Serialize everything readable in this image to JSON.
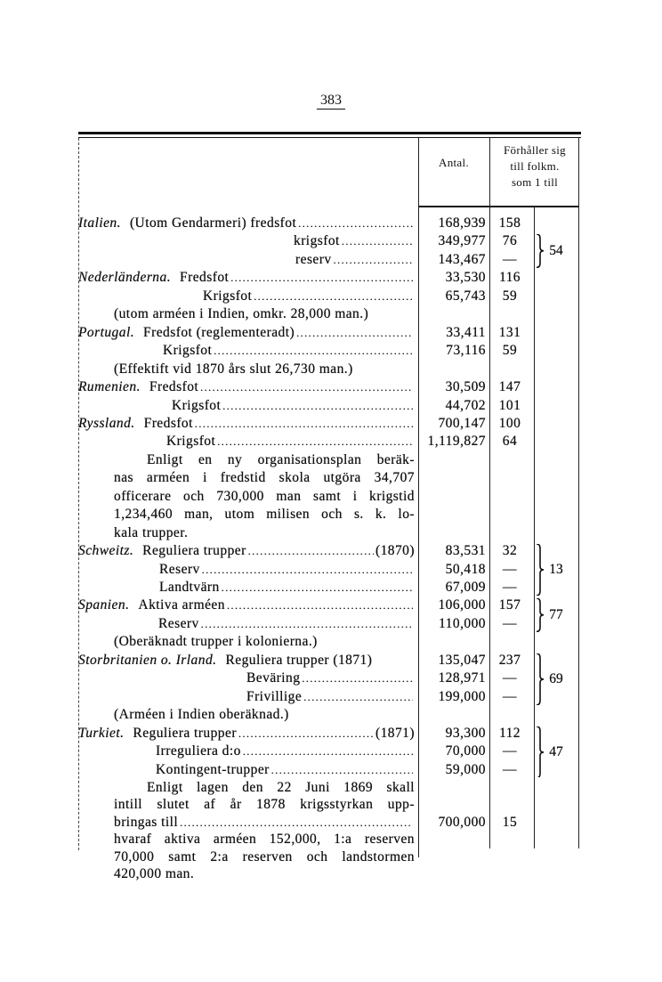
{
  "page_number": "383",
  "header": {
    "antal": "Antal.",
    "ratio_lines": [
      "Förhåller sig",
      "till folkm.",
      "som 1 till"
    ]
  },
  "rows": [
    {
      "country": "Italien.",
      "text": "(Utom Gendarmeri) fredsfot",
      "dots": true,
      "antal": "168,939",
      "ratio": "158"
    },
    {
      "text": "krigsfot",
      "dots": true,
      "antal": "349,977",
      "ratio": "76"
    },
    {
      "text": "reserv",
      "dots": true,
      "antal": "143,467",
      "ratio": "—"
    },
    {
      "country": "Nederländerna.",
      "text": "Fredsfot",
      "dots": true,
      "antal": "33,530",
      "ratio": "116"
    },
    {
      "text": "Krigsfot",
      "dots": true,
      "antal": "65,743",
      "ratio": "59"
    },
    {
      "text": "(utom arméen i Indien, omkr. 28,000 man.)"
    },
    {
      "country": "Portugal.",
      "text": "Fredsfot (reglementeradt)",
      "dots": true,
      "antal": "33,411",
      "ratio": "131"
    },
    {
      "text": "Krigsfot",
      "dots": true,
      "antal": "73,116",
      "ratio": "59"
    },
    {
      "text": "(Effektift vid 1870 års slut 26,730 man.)"
    },
    {
      "country": "Rumenien.",
      "text": "Fredsfot",
      "dots": true,
      "antal": "30,509",
      "ratio": "147"
    },
    {
      "text": "Krigsfot",
      "dots": true,
      "antal": "44,702",
      "ratio": "101"
    },
    {
      "country": "Ryssland.",
      "text": "Fredsfot",
      "dots": true,
      "antal": "700,147",
      "ratio": "100"
    },
    {
      "text": "Krigsfot",
      "dots": true,
      "antal": "1,119,827",
      "ratio": "64"
    },
    {
      "text": "Enligt en ny organisationsplan beräk-",
      "para": true
    },
    {
      "text": "nas arméen i fredstid skola utgöra 34,707",
      "para": true
    },
    {
      "text": "officerare och 730,000 man samt i krigstid",
      "para": true
    },
    {
      "text": "1,234,460 man, utom milisen och s. k. lo-",
      "para": true
    },
    {
      "text": "kala trupper.",
      "para": true,
      "last": true
    },
    {
      "country": "Schweitz.",
      "text": "Reguliera trupper",
      "dots": true,
      "suffix": "(1870)",
      "antal": "83,531",
      "ratio": "32"
    },
    {
      "text": "Reserv",
      "dots": true,
      "antal": "50,418",
      "ratio": "—"
    },
    {
      "text": "Landtvärn",
      "dots": true,
      "antal": "67,009",
      "ratio": "—"
    },
    {
      "country": "Spanien.",
      "text": "Aktiva arméen",
      "dots": true,
      "antal": "106,000",
      "ratio": "157"
    },
    {
      "text": "Reserv",
      "dots": true,
      "antal": "110,000",
      "ratio": "—"
    },
    {
      "text": "(Oberäknadt trupper i kolonierna.)"
    },
    {
      "country": "Storbritanien o. Irland.",
      "text": "Reguliera trupper (1871)",
      "antal": "135,047",
      "ratio": "237"
    },
    {
      "text": "Beväring",
      "dots": true,
      "antal": "128,971",
      "ratio": "—"
    },
    {
      "text": "Frivillige",
      "dots": true,
      "antal": "199,000",
      "ratio": "—"
    },
    {
      "text": "(Arméen i Indien oberäknad.)"
    },
    {
      "country": "Turkiet.",
      "text": "Reguliera trupper",
      "dots": true,
      "suffix": "(1871)",
      "antal": "93,300",
      "ratio": "112"
    },
    {
      "text": "Irreguliera d:o",
      "dots": true,
      "antal": "70,000",
      "ratio": "—"
    },
    {
      "text": "Kontingent-trupper",
      "dots": true,
      "antal": "59,000",
      "ratio": "—"
    },
    {
      "text": "Enligt lagen den 22 Juni 1869 skall",
      "para": true
    },
    {
      "text": "intill slutet af år 1878 krigsstyrkan upp-",
      "para": true
    },
    {
      "text": "bringas till",
      "dots": true,
      "antal": "700,000",
      "ratio": "15"
    },
    {
      "text": "hvaraf aktiva arméen 152,000, 1:a reserven",
      "para": true
    },
    {
      "text": "70,000 samt 2:a reserven och landstormen",
      "para": true
    },
    {
      "text": "420,000 man.",
      "para": true,
      "last": true
    }
  ],
  "groups": [
    {
      "from": 1,
      "to": 2,
      "value": "54"
    },
    {
      "from": 18,
      "to": 20,
      "value": "13"
    },
    {
      "from": 21,
      "to": 22,
      "value": "77"
    },
    {
      "from": 24,
      "to": 26,
      "value": "69"
    },
    {
      "from": 28,
      "to": 30,
      "value": "47"
    }
  ]
}
